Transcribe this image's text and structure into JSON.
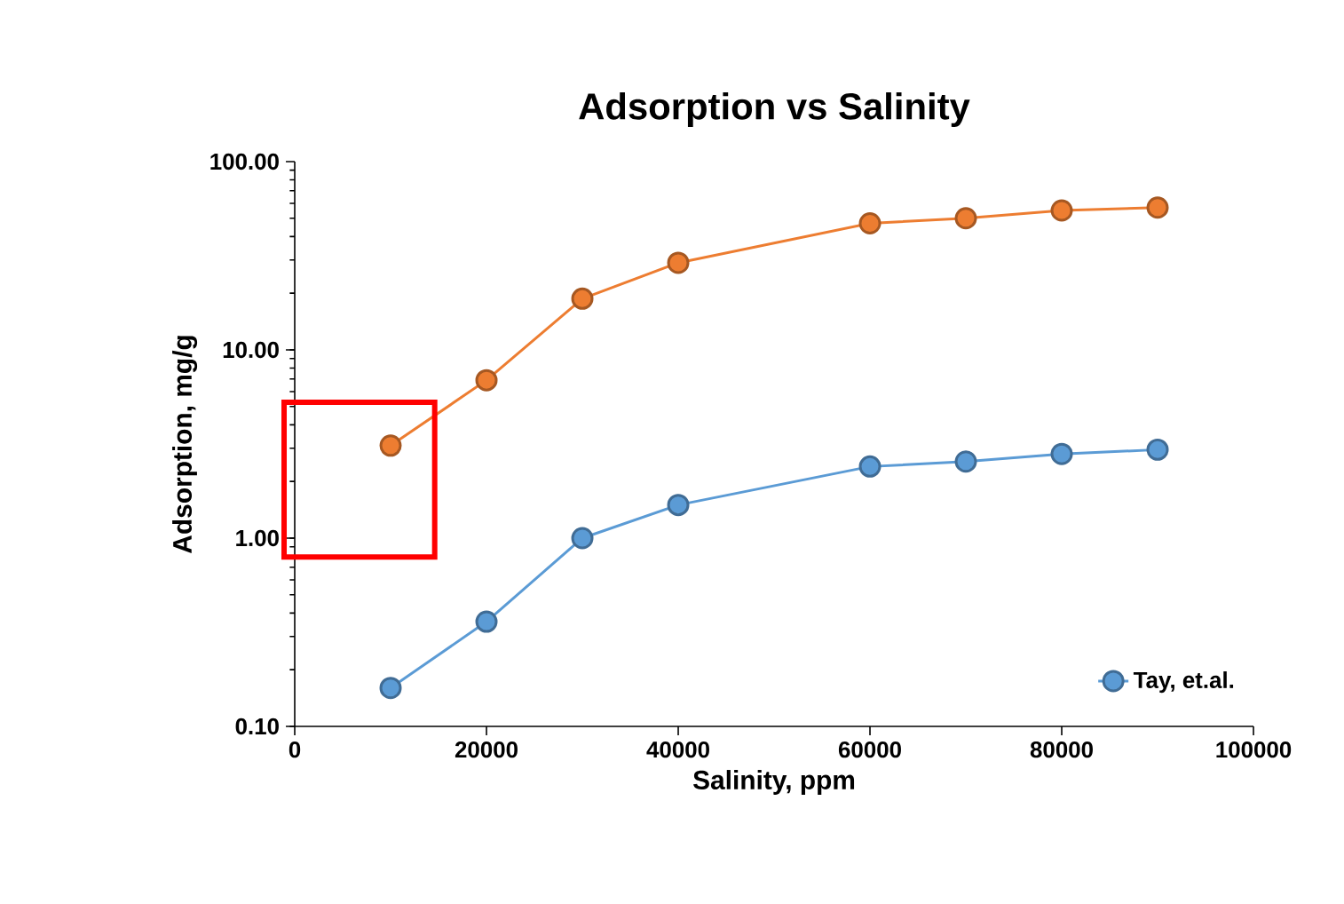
{
  "chart_data": {
    "type": "line",
    "title": "Adsorption vs Salinity",
    "xlabel": "Salinity, ppm",
    "ylabel": "Adsorption, mg/g",
    "x": [
      10000,
      20000,
      30000,
      40000,
      60000,
      70000,
      80000,
      90000
    ],
    "series": [
      {
        "name": "Tay, et.al.",
        "color": "#5b9bd5",
        "values": [
          0.16,
          0.36,
          1.0,
          1.5,
          2.4,
          2.55,
          2.8,
          2.95
        ]
      },
      {
        "color": "#ed7d31",
        "values": [
          3.1,
          6.9,
          18.7,
          29,
          47,
          50,
          55,
          57
        ]
      }
    ],
    "log": "y",
    "xlim": [
      0,
      100000
    ],
    "xticks": [
      0,
      20000,
      40000,
      60000,
      80000,
      100000
    ],
    "ylim": [
      0.1,
      100
    ],
    "yticks": [
      {
        "value": 0.1,
        "label": "0.10"
      },
      {
        "value": 1,
        "label": "1.00"
      },
      {
        "value": 10,
        "label": "10.00"
      },
      {
        "value": 100,
        "label": "100.00"
      }
    ],
    "grid": false,
    "legend": "bottom right",
    "marker": "circle",
    "line_style": "solid"
  }
}
